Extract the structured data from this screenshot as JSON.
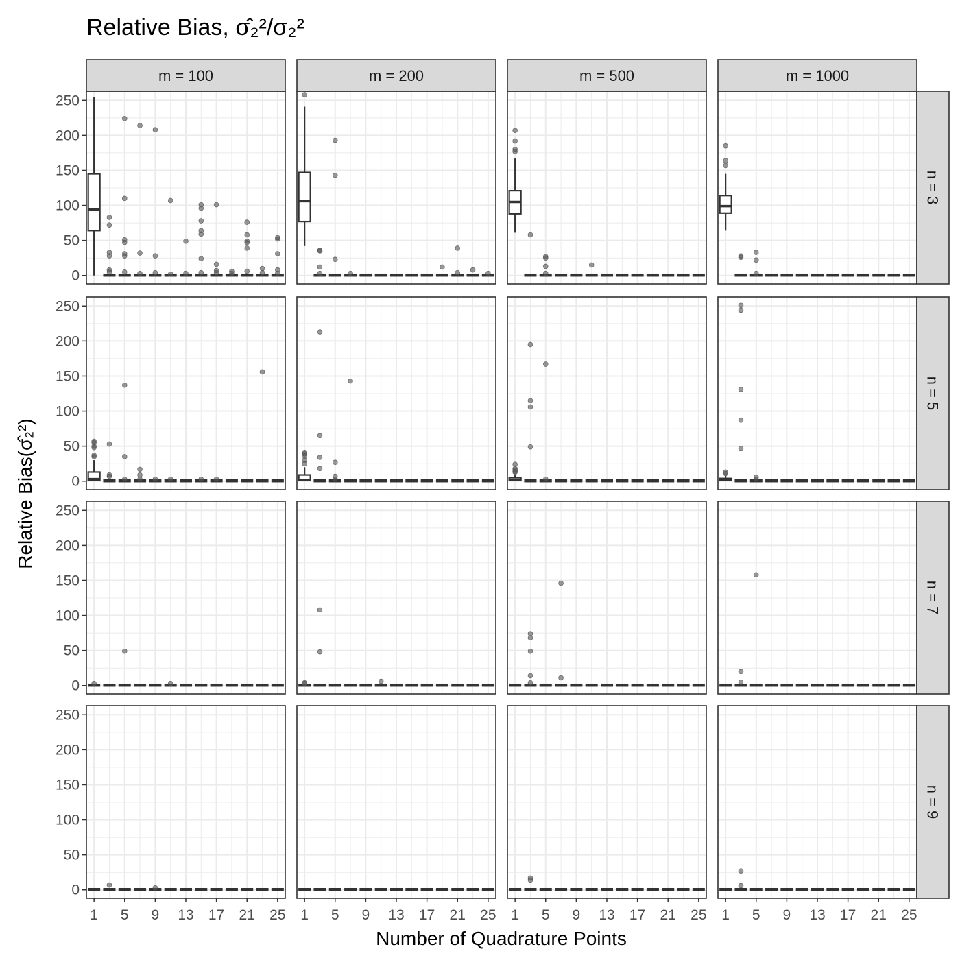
{
  "chart_data": {
    "type": "boxplot",
    "title_prefix": "Relative Bias, ",
    "title_math": "σ̂₂²/σ₂²",
    "xlabel": "Number of Quadrature Points",
    "ylabel_prefix": "Relative Bias(",
    "ylabel_math": "σ̂₂²",
    "ylabel_suffix": ")",
    "column_facets": [
      "m = 100",
      "m = 200",
      "m = 500",
      "m = 1000"
    ],
    "row_facets": [
      "n = 3",
      "n = 5",
      "n = 7",
      "n = 9"
    ],
    "x_ticks": [
      1,
      5,
      9,
      13,
      17,
      21,
      25
    ],
    "x_categories": [
      1,
      3,
      5,
      7,
      9,
      11,
      13,
      15,
      17,
      19,
      21,
      23,
      25
    ],
    "xlim": [
      0,
      26
    ],
    "y_ticks": [
      0,
      50,
      100,
      150,
      200,
      250
    ],
    "ylim": [
      -12,
      263
    ],
    "grid": true,
    "colors": {
      "panel_border": "#333333",
      "strip_fill": "#d9d9d9",
      "grid": "#ebebeb",
      "box": "#333333",
      "outlier": "#555555"
    },
    "large_boxes": [
      {
        "row": 0,
        "col": 0,
        "x": 1,
        "lower_whisker": 0,
        "q1": 64,
        "median": 94,
        "q3": 145,
        "upper_whisker": 255
      },
      {
        "row": 0,
        "col": 1,
        "x": 1,
        "lower_whisker": 42,
        "q1": 77,
        "median": 106,
        "q3": 147,
        "upper_whisker": 241
      },
      {
        "row": 0,
        "col": 2,
        "x": 1,
        "lower_whisker": 61,
        "q1": 88,
        "median": 105,
        "q3": 121,
        "upper_whisker": 167
      },
      {
        "row": 0,
        "col": 3,
        "x": 1,
        "lower_whisker": 64,
        "q1": 89,
        "median": 99,
        "q3": 114,
        "upper_whisker": 145
      },
      {
        "row": 1,
        "col": 0,
        "x": 1,
        "lower_whisker": 0,
        "q1": 1,
        "median": 3,
        "q3": 13,
        "upper_whisker": 30
      },
      {
        "row": 1,
        "col": 1,
        "x": 1,
        "lower_whisker": 0,
        "q1": 1,
        "median": 2,
        "q3": 9,
        "upper_whisker": 20
      },
      {
        "row": 1,
        "col": 2,
        "x": 1,
        "lower_whisker": 0,
        "q1": 1,
        "median": 2,
        "q3": 5,
        "upper_whisker": 10
      },
      {
        "row": 1,
        "col": 3,
        "x": 1,
        "lower_whisker": 0,
        "q1": 1,
        "median": 2,
        "q3": 4,
        "upper_whisker": 8
      }
    ],
    "outliers": [
      {
        "row": 0,
        "col": 0,
        "points": [
          [
            3,
            83
          ],
          [
            3,
            72
          ],
          [
            3,
            33
          ],
          [
            3,
            28
          ],
          [
            3,
            8
          ],
          [
            3,
            5
          ],
          [
            5,
            224
          ],
          [
            5,
            110
          ],
          [
            5,
            51
          ],
          [
            5,
            47
          ],
          [
            5,
            31
          ],
          [
            5,
            28
          ],
          [
            5,
            5
          ],
          [
            7,
            214
          ],
          [
            7,
            32
          ],
          [
            7,
            3
          ],
          [
            9,
            208
          ],
          [
            9,
            28
          ],
          [
            9,
            4
          ],
          [
            11,
            107
          ],
          [
            11,
            2
          ],
          [
            13,
            49
          ],
          [
            13,
            3
          ],
          [
            15,
            101
          ],
          [
            15,
            96
          ],
          [
            15,
            78
          ],
          [
            15,
            64
          ],
          [
            15,
            59
          ],
          [
            15,
            24
          ],
          [
            15,
            4
          ],
          [
            17,
            101
          ],
          [
            17,
            16
          ],
          [
            17,
            7
          ],
          [
            17,
            4
          ],
          [
            19,
            6
          ],
          [
            19,
            3
          ],
          [
            21,
            76
          ],
          [
            21,
            58
          ],
          [
            21,
            49
          ],
          [
            21,
            47
          ],
          [
            21,
            39
          ],
          [
            21,
            6
          ],
          [
            23,
            10
          ],
          [
            23,
            4
          ],
          [
            25,
            54
          ],
          [
            25,
            52
          ],
          [
            25,
            31
          ],
          [
            25,
            8
          ],
          [
            25,
            3
          ]
        ]
      },
      {
        "row": 0,
        "col": 1,
        "points": [
          [
            1,
            258
          ],
          [
            3,
            36
          ],
          [
            3,
            35
          ],
          [
            3,
            12
          ],
          [
            3,
            3
          ],
          [
            5,
            193
          ],
          [
            5,
            143
          ],
          [
            5,
            23
          ],
          [
            7,
            3
          ],
          [
            19,
            12
          ],
          [
            21,
            39
          ],
          [
            21,
            4
          ],
          [
            23,
            8
          ],
          [
            25,
            3
          ]
        ]
      },
      {
        "row": 0,
        "col": 2,
        "points": [
          [
            1,
            207
          ],
          [
            1,
            192
          ],
          [
            1,
            180
          ],
          [
            1,
            177
          ],
          [
            3,
            58
          ],
          [
            5,
            27
          ],
          [
            5,
            25
          ],
          [
            5,
            13
          ],
          [
            5,
            3
          ],
          [
            11,
            15
          ]
        ]
      },
      {
        "row": 0,
        "col": 3,
        "points": [
          [
            1,
            185
          ],
          [
            1,
            164
          ],
          [
            1,
            157
          ],
          [
            3,
            28
          ],
          [
            3,
            26
          ],
          [
            5,
            33
          ],
          [
            5,
            22
          ],
          [
            5,
            3
          ]
        ]
      },
      {
        "row": 1,
        "col": 0,
        "points": [
          [
            1,
            57
          ],
          [
            1,
            55
          ],
          [
            1,
            50
          ],
          [
            1,
            48
          ],
          [
            1,
            37
          ],
          [
            1,
            35
          ],
          [
            3,
            53
          ],
          [
            3,
            9
          ],
          [
            3,
            7
          ],
          [
            5,
            137
          ],
          [
            5,
            35
          ],
          [
            5,
            3
          ],
          [
            7,
            17
          ],
          [
            7,
            9
          ],
          [
            7,
            3
          ],
          [
            9,
            3
          ],
          [
            11,
            3
          ],
          [
            15,
            3
          ],
          [
            17,
            3
          ],
          [
            23,
            156
          ]
        ]
      },
      {
        "row": 1,
        "col": 1,
        "points": [
          [
            1,
            41
          ],
          [
            1,
            39
          ],
          [
            1,
            36
          ],
          [
            1,
            30
          ],
          [
            1,
            25
          ],
          [
            3,
            213
          ],
          [
            3,
            65
          ],
          [
            3,
            34
          ],
          [
            3,
            18
          ],
          [
            5,
            27
          ],
          [
            5,
            7
          ],
          [
            5,
            3
          ],
          [
            7,
            143
          ]
        ]
      },
      {
        "row": 1,
        "col": 2,
        "points": [
          [
            1,
            24
          ],
          [
            1,
            18
          ],
          [
            1,
            16
          ],
          [
            1,
            14
          ],
          [
            1,
            13
          ],
          [
            3,
            195
          ],
          [
            3,
            115
          ],
          [
            3,
            106
          ],
          [
            3,
            49
          ],
          [
            5,
            167
          ],
          [
            5,
            3
          ]
        ]
      },
      {
        "row": 1,
        "col": 3,
        "points": [
          [
            1,
            13
          ],
          [
            1,
            11
          ],
          [
            3,
            251
          ],
          [
            3,
            244
          ],
          [
            3,
            131
          ],
          [
            3,
            87
          ],
          [
            3,
            47
          ],
          [
            5,
            6
          ],
          [
            5,
            3
          ]
        ]
      },
      {
        "row": 2,
        "col": 0,
        "points": [
          [
            1,
            3
          ],
          [
            5,
            49
          ],
          [
            11,
            3
          ]
        ]
      },
      {
        "row": 2,
        "col": 1,
        "points": [
          [
            1,
            4
          ],
          [
            1,
            3
          ],
          [
            3,
            108
          ],
          [
            3,
            48
          ],
          [
            11,
            6
          ]
        ]
      },
      {
        "row": 2,
        "col": 2,
        "points": [
          [
            3,
            74
          ],
          [
            3,
            68
          ],
          [
            3,
            49
          ],
          [
            3,
            14
          ],
          [
            3,
            4
          ],
          [
            7,
            146
          ],
          [
            7,
            11
          ]
        ]
      },
      {
        "row": 2,
        "col": 3,
        "points": [
          [
            3,
            20
          ],
          [
            3,
            5
          ],
          [
            5,
            158
          ]
        ]
      },
      {
        "row": 3,
        "col": 0,
        "points": [
          [
            3,
            7
          ],
          [
            9,
            3
          ]
        ]
      },
      {
        "row": 3,
        "col": 1,
        "points": []
      },
      {
        "row": 3,
        "col": 2,
        "points": [
          [
            3,
            17
          ],
          [
            3,
            14
          ]
        ]
      },
      {
        "row": 3,
        "col": 3,
        "points": [
          [
            3,
            27
          ],
          [
            3,
            6
          ]
        ]
      }
    ]
  }
}
